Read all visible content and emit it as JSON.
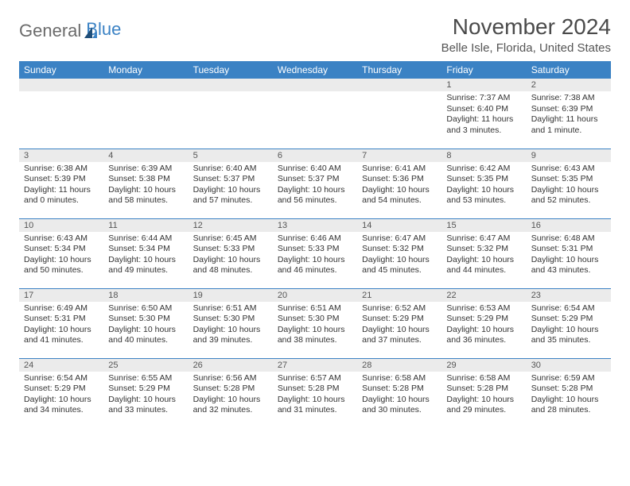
{
  "logo": {
    "text1": "General",
    "text2": "Blue"
  },
  "title": "November 2024",
  "location": "Belle Isle, Florida, United States",
  "colors": {
    "header_bg": "#3b82c4",
    "header_text": "#ffffff",
    "daynum_bg": "#ebebeb",
    "border": "#3b82c4",
    "body_text": "#333333",
    "title_text": "#4a4a4a",
    "logo_gray": "#6b6b6b",
    "logo_blue": "#3b82c4"
  },
  "weekdays": [
    "Sunday",
    "Monday",
    "Tuesday",
    "Wednesday",
    "Thursday",
    "Friday",
    "Saturday"
  ],
  "weeks": [
    [
      {
        "blank": true
      },
      {
        "blank": true
      },
      {
        "blank": true
      },
      {
        "blank": true
      },
      {
        "blank": true
      },
      {
        "n": "1",
        "sunrise": "Sunrise: 7:37 AM",
        "sunset": "Sunset: 6:40 PM",
        "daylight": "Daylight: 11 hours and 3 minutes."
      },
      {
        "n": "2",
        "sunrise": "Sunrise: 7:38 AM",
        "sunset": "Sunset: 6:39 PM",
        "daylight": "Daylight: 11 hours and 1 minute."
      }
    ],
    [
      {
        "n": "3",
        "sunrise": "Sunrise: 6:38 AM",
        "sunset": "Sunset: 5:39 PM",
        "daylight": "Daylight: 11 hours and 0 minutes."
      },
      {
        "n": "4",
        "sunrise": "Sunrise: 6:39 AM",
        "sunset": "Sunset: 5:38 PM",
        "daylight": "Daylight: 10 hours and 58 minutes."
      },
      {
        "n": "5",
        "sunrise": "Sunrise: 6:40 AM",
        "sunset": "Sunset: 5:37 PM",
        "daylight": "Daylight: 10 hours and 57 minutes."
      },
      {
        "n": "6",
        "sunrise": "Sunrise: 6:40 AM",
        "sunset": "Sunset: 5:37 PM",
        "daylight": "Daylight: 10 hours and 56 minutes."
      },
      {
        "n": "7",
        "sunrise": "Sunrise: 6:41 AM",
        "sunset": "Sunset: 5:36 PM",
        "daylight": "Daylight: 10 hours and 54 minutes."
      },
      {
        "n": "8",
        "sunrise": "Sunrise: 6:42 AM",
        "sunset": "Sunset: 5:35 PM",
        "daylight": "Daylight: 10 hours and 53 minutes."
      },
      {
        "n": "9",
        "sunrise": "Sunrise: 6:43 AM",
        "sunset": "Sunset: 5:35 PM",
        "daylight": "Daylight: 10 hours and 52 minutes."
      }
    ],
    [
      {
        "n": "10",
        "sunrise": "Sunrise: 6:43 AM",
        "sunset": "Sunset: 5:34 PM",
        "daylight": "Daylight: 10 hours and 50 minutes."
      },
      {
        "n": "11",
        "sunrise": "Sunrise: 6:44 AM",
        "sunset": "Sunset: 5:34 PM",
        "daylight": "Daylight: 10 hours and 49 minutes."
      },
      {
        "n": "12",
        "sunrise": "Sunrise: 6:45 AM",
        "sunset": "Sunset: 5:33 PM",
        "daylight": "Daylight: 10 hours and 48 minutes."
      },
      {
        "n": "13",
        "sunrise": "Sunrise: 6:46 AM",
        "sunset": "Sunset: 5:33 PM",
        "daylight": "Daylight: 10 hours and 46 minutes."
      },
      {
        "n": "14",
        "sunrise": "Sunrise: 6:47 AM",
        "sunset": "Sunset: 5:32 PM",
        "daylight": "Daylight: 10 hours and 45 minutes."
      },
      {
        "n": "15",
        "sunrise": "Sunrise: 6:47 AM",
        "sunset": "Sunset: 5:32 PM",
        "daylight": "Daylight: 10 hours and 44 minutes."
      },
      {
        "n": "16",
        "sunrise": "Sunrise: 6:48 AM",
        "sunset": "Sunset: 5:31 PM",
        "daylight": "Daylight: 10 hours and 43 minutes."
      }
    ],
    [
      {
        "n": "17",
        "sunrise": "Sunrise: 6:49 AM",
        "sunset": "Sunset: 5:31 PM",
        "daylight": "Daylight: 10 hours and 41 minutes."
      },
      {
        "n": "18",
        "sunrise": "Sunrise: 6:50 AM",
        "sunset": "Sunset: 5:30 PM",
        "daylight": "Daylight: 10 hours and 40 minutes."
      },
      {
        "n": "19",
        "sunrise": "Sunrise: 6:51 AM",
        "sunset": "Sunset: 5:30 PM",
        "daylight": "Daylight: 10 hours and 39 minutes."
      },
      {
        "n": "20",
        "sunrise": "Sunrise: 6:51 AM",
        "sunset": "Sunset: 5:30 PM",
        "daylight": "Daylight: 10 hours and 38 minutes."
      },
      {
        "n": "21",
        "sunrise": "Sunrise: 6:52 AM",
        "sunset": "Sunset: 5:29 PM",
        "daylight": "Daylight: 10 hours and 37 minutes."
      },
      {
        "n": "22",
        "sunrise": "Sunrise: 6:53 AM",
        "sunset": "Sunset: 5:29 PM",
        "daylight": "Daylight: 10 hours and 36 minutes."
      },
      {
        "n": "23",
        "sunrise": "Sunrise: 6:54 AM",
        "sunset": "Sunset: 5:29 PM",
        "daylight": "Daylight: 10 hours and 35 minutes."
      }
    ],
    [
      {
        "n": "24",
        "sunrise": "Sunrise: 6:54 AM",
        "sunset": "Sunset: 5:29 PM",
        "daylight": "Daylight: 10 hours and 34 minutes."
      },
      {
        "n": "25",
        "sunrise": "Sunrise: 6:55 AM",
        "sunset": "Sunset: 5:29 PM",
        "daylight": "Daylight: 10 hours and 33 minutes."
      },
      {
        "n": "26",
        "sunrise": "Sunrise: 6:56 AM",
        "sunset": "Sunset: 5:28 PM",
        "daylight": "Daylight: 10 hours and 32 minutes."
      },
      {
        "n": "27",
        "sunrise": "Sunrise: 6:57 AM",
        "sunset": "Sunset: 5:28 PM",
        "daylight": "Daylight: 10 hours and 31 minutes."
      },
      {
        "n": "28",
        "sunrise": "Sunrise: 6:58 AM",
        "sunset": "Sunset: 5:28 PM",
        "daylight": "Daylight: 10 hours and 30 minutes."
      },
      {
        "n": "29",
        "sunrise": "Sunrise: 6:58 AM",
        "sunset": "Sunset: 5:28 PM",
        "daylight": "Daylight: 10 hours and 29 minutes."
      },
      {
        "n": "30",
        "sunrise": "Sunrise: 6:59 AM",
        "sunset": "Sunset: 5:28 PM",
        "daylight": "Daylight: 10 hours and 28 minutes."
      }
    ]
  ]
}
